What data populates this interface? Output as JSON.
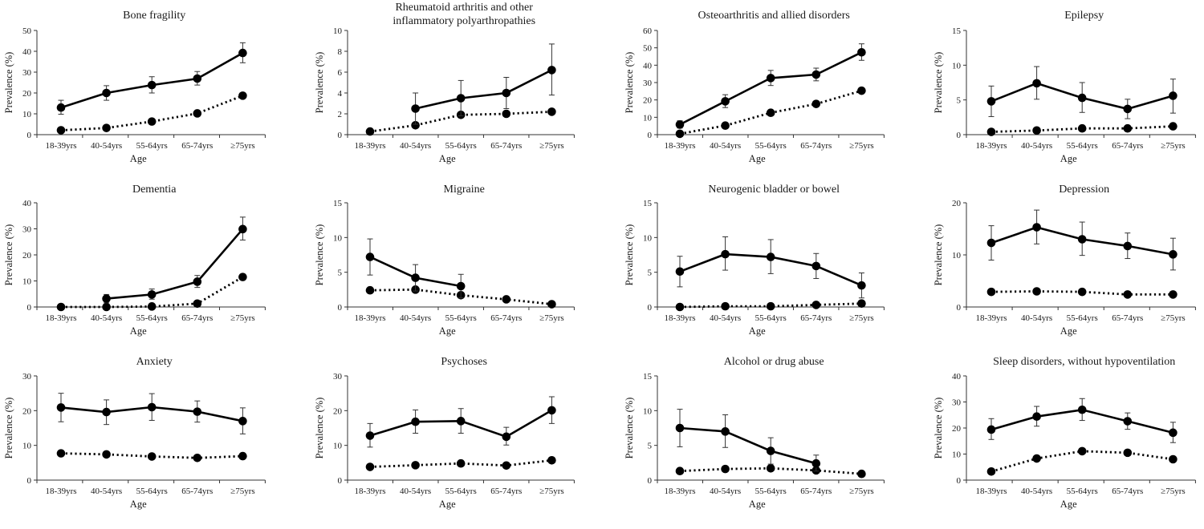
{
  "chart_data": [
    {
      "type": "line",
      "title": "Bone fragility",
      "xlabel": "Age",
      "ylabel": "Prevalence (%)",
      "categories": [
        "18-39yrs",
        "40-54yrs",
        "55-64yrs",
        "65-74yrs",
        "≥75yrs"
      ],
      "yticks": [
        0,
        10,
        20,
        30,
        40,
        50
      ],
      "ylim": [
        0,
        50
      ],
      "series": [
        {
          "name": "solid",
          "style": "solid",
          "values": [
            13.0,
            20.0,
            23.8,
            26.9,
            39.2
          ],
          "err_low": [
            9.8,
            16.5,
            20.0,
            23.8,
            34.5
          ],
          "err_high": [
            16.5,
            23.5,
            27.8,
            30.3,
            44.1
          ]
        },
        {
          "name": "dotted",
          "style": "dotted",
          "values": [
            2.1,
            3.2,
            6.3,
            10.2,
            18.7
          ]
        }
      ]
    },
    {
      "type": "line",
      "title": "Rheumatoid arthritis and other inflammatory polyarthropathies",
      "title_lines": [
        "Rheumatoid arthritis and other",
        "inflammatory polyarthropathies"
      ],
      "xlabel": "Age",
      "ylabel": "Prevalence (%)",
      "categories": [
        "18-39yrs",
        "40-54yrs",
        "55-64yrs",
        "65-74yrs",
        "≥75yrs"
      ],
      "yticks": [
        0,
        2,
        4,
        6,
        8,
        10
      ],
      "ylim": [
        0,
        10
      ],
      "series": [
        {
          "name": "solid",
          "style": "solid",
          "values": [
            null,
            2.5,
            3.5,
            4.0,
            6.2
          ],
          "err_low": [
            null,
            1.0,
            1.8,
            2.5,
            3.8
          ],
          "err_high": [
            null,
            4.0,
            5.2,
            5.5,
            8.7
          ]
        },
        {
          "name": "dotted",
          "style": "dotted",
          "values": [
            0.3,
            0.9,
            1.9,
            2.0,
            2.2
          ]
        }
      ]
    },
    {
      "type": "line",
      "title": "Osteoarthritis and allied disorders",
      "xlabel": "Age",
      "ylabel": "Prevalence (%)",
      "categories": [
        "18-39yrs",
        "40-54yrs",
        "55-64yrs",
        "65-74yrs",
        "≥75yrs"
      ],
      "yticks": [
        0,
        10,
        20,
        30,
        40,
        50,
        60
      ],
      "ylim": [
        0,
        60
      ],
      "series": [
        {
          "name": "solid",
          "style": "solid",
          "values": [
            5.8,
            19.2,
            32.6,
            34.6,
            47.4
          ],
          "err_low": [
            3.8,
            15.6,
            28.3,
            31.0,
            42.8
          ],
          "err_high": [
            8.0,
            23.0,
            37.0,
            38.3,
            52.3
          ]
        },
        {
          "name": "dotted",
          "style": "dotted",
          "values": [
            0.5,
            5.2,
            12.6,
            17.7,
            25.3
          ]
        }
      ]
    },
    {
      "type": "line",
      "title": "Epilepsy",
      "xlabel": "Age",
      "ylabel": "Prevalence (%)",
      "categories": [
        "18-39yrs",
        "40-54yrs",
        "55-64yrs",
        "65-74yrs",
        "≥75yrs"
      ],
      "yticks": [
        0,
        5,
        10,
        15
      ],
      "ylim": [
        0,
        15
      ],
      "series": [
        {
          "name": "solid",
          "style": "solid",
          "values": [
            4.8,
            7.4,
            5.3,
            3.7,
            5.6
          ],
          "err_low": [
            2.6,
            5.1,
            3.2,
            2.3,
            3.1
          ],
          "err_high": [
            7.0,
            9.8,
            7.5,
            5.1,
            8.0
          ]
        },
        {
          "name": "dotted",
          "style": "dotted",
          "values": [
            0.4,
            0.6,
            0.9,
            0.9,
            1.2
          ]
        }
      ]
    },
    {
      "type": "line",
      "title": "Dementia",
      "xlabel": "Age",
      "ylabel": "Prevalence (%)",
      "categories": [
        "18-39yrs",
        "40-54yrs",
        "55-64yrs",
        "65-74yrs",
        "≥75yrs"
      ],
      "yticks": [
        0,
        10,
        20,
        30,
        40
      ],
      "ylim": [
        0,
        40
      ],
      "series": [
        {
          "name": "solid",
          "style": "solid",
          "values": [
            null,
            3.2,
            4.8,
            9.7,
            29.9
          ],
          "err_low": [
            null,
            1.6,
            3.0,
            7.5,
            25.7
          ],
          "err_high": [
            null,
            4.8,
            6.9,
            12.1,
            34.5
          ]
        },
        {
          "name": "dotted",
          "style": "dotted",
          "values": [
            0.0,
            0.0,
            0.2,
            1.3,
            11.5
          ]
        }
      ]
    },
    {
      "type": "line",
      "title": "Migraine",
      "xlabel": "Age",
      "ylabel": "Prevalence (%)",
      "categories": [
        "18-39yrs",
        "40-54yrs",
        "55-64yrs",
        "65-74yrs",
        "≥75yrs"
      ],
      "yticks": [
        0,
        5,
        10,
        15
      ],
      "ylim": [
        0,
        15
      ],
      "series": [
        {
          "name": "solid",
          "style": "solid",
          "values": [
            7.2,
            4.2,
            3.0,
            null,
            null
          ],
          "err_low": [
            4.6,
            2.3,
            1.3,
            null,
            null
          ],
          "err_high": [
            9.8,
            6.1,
            4.7,
            null,
            null
          ]
        },
        {
          "name": "dotted",
          "style": "dotted",
          "values": [
            2.4,
            2.5,
            1.7,
            1.1,
            0.4
          ]
        }
      ]
    },
    {
      "type": "line",
      "title": "Neurogenic bladder or bowel",
      "xlabel": "Age",
      "ylabel": "Prevalence (%)",
      "categories": [
        "18-39yrs",
        "40-54yrs",
        "55-64yrs",
        "65-74yrs",
        "≥75yrs"
      ],
      "yticks": [
        0,
        5,
        10,
        15
      ],
      "ylim": [
        0,
        15
      ],
      "series": [
        {
          "name": "solid",
          "style": "solid",
          "values": [
            5.1,
            7.6,
            7.2,
            5.9,
            3.1
          ],
          "err_low": [
            2.9,
            5.3,
            4.8,
            4.1,
            1.3
          ],
          "err_high": [
            7.3,
            10.1,
            9.7,
            7.7,
            4.9
          ]
        },
        {
          "name": "dotted",
          "style": "dotted",
          "values": [
            0.0,
            0.1,
            0.1,
            0.3,
            0.5
          ]
        }
      ]
    },
    {
      "type": "line",
      "title": "Depression",
      "xlabel": "Age",
      "ylabel": "Prevalence (%)",
      "categories": [
        "18-39yrs",
        "40-54yrs",
        "55-64yrs",
        "65-74yrs",
        "≥75yrs"
      ],
      "yticks": [
        0,
        10,
        20
      ],
      "ylim": [
        0,
        20
      ],
      "series": [
        {
          "name": "solid",
          "style": "solid",
          "values": [
            12.3,
            15.3,
            13.0,
            11.7,
            10.1
          ],
          "err_low": [
            9.0,
            12.1,
            9.9,
            9.3,
            7.1
          ],
          "err_high": [
            15.6,
            18.6,
            16.3,
            14.2,
            13.2
          ]
        },
        {
          "name": "dotted",
          "style": "dotted",
          "values": [
            2.9,
            3.0,
            2.9,
            2.4,
            2.4
          ]
        }
      ]
    },
    {
      "type": "line",
      "title": "Anxiety",
      "xlabel": "Age",
      "ylabel": "Prevalence (%)",
      "categories": [
        "18-39yrs",
        "40-54yrs",
        "55-64yrs",
        "65-74yrs",
        "≥75yrs"
      ],
      "yticks": [
        0,
        10,
        20,
        30
      ],
      "ylim": [
        0,
        30
      ],
      "series": [
        {
          "name": "solid",
          "style": "solid",
          "values": [
            20.9,
            19.6,
            21.0,
            19.7,
            17.0
          ],
          "err_low": [
            16.8,
            16.0,
            17.2,
            16.7,
            13.3
          ],
          "err_high": [
            25.0,
            23.1,
            24.9,
            22.8,
            20.8
          ]
        },
        {
          "name": "dotted",
          "style": "dotted",
          "values": [
            7.7,
            7.4,
            6.8,
            6.4,
            6.9
          ]
        }
      ]
    },
    {
      "type": "line",
      "title": "Psychoses",
      "xlabel": "Age",
      "ylabel": "Prevalence (%)",
      "categories": [
        "18-39yrs",
        "40-54yrs",
        "55-64yrs",
        "65-74yrs",
        "≥75yrs"
      ],
      "yticks": [
        0,
        10,
        20,
        30
      ],
      "ylim": [
        0,
        30
      ],
      "series": [
        {
          "name": "solid",
          "style": "solid",
          "values": [
            12.8,
            16.8,
            17.0,
            12.5,
            20.1
          ],
          "err_low": [
            9.5,
            13.5,
            13.5,
            10.1,
            16.3
          ],
          "err_high": [
            16.3,
            20.2,
            20.6,
            15.2,
            24.0
          ]
        },
        {
          "name": "dotted",
          "style": "dotted",
          "values": [
            3.8,
            4.3,
            4.8,
            4.2,
            5.7
          ]
        }
      ]
    },
    {
      "type": "line",
      "title": "Alcohol or drug abuse",
      "xlabel": "Age",
      "ylabel": "Prevalence (%)",
      "categories": [
        "18-39yrs",
        "40-54yrs",
        "55-64yrs",
        "65-74yrs",
        "≥75yrs"
      ],
      "yticks": [
        0,
        5,
        10,
        15
      ],
      "ylim": [
        0,
        15
      ],
      "series": [
        {
          "name": "solid",
          "style": "solid",
          "values": [
            7.5,
            7.0,
            4.2,
            2.4,
            null
          ],
          "err_low": [
            4.8,
            4.7,
            2.3,
            1.3,
            null
          ],
          "err_high": [
            10.2,
            9.4,
            6.1,
            3.6,
            null
          ]
        },
        {
          "name": "dotted",
          "style": "dotted",
          "values": [
            1.3,
            1.6,
            1.7,
            1.4,
            0.9
          ]
        }
      ]
    },
    {
      "type": "line",
      "title": "Sleep disorders, without hypoventilation",
      "xlabel": "Age",
      "ylabel": "Prevalence (%)",
      "categories": [
        "18-39yrs",
        "40-54yrs",
        "55-64yrs",
        "65-74yrs",
        "≥75yrs"
      ],
      "yticks": [
        0,
        10,
        20,
        30,
        40
      ],
      "ylim": [
        0,
        40
      ],
      "series": [
        {
          "name": "solid",
          "style": "solid",
          "values": [
            19.4,
            24.4,
            27.0,
            22.6,
            18.2
          ],
          "err_low": [
            15.6,
            20.7,
            22.9,
            19.5,
            14.4
          ],
          "err_high": [
            23.6,
            28.3,
            31.3,
            25.8,
            22.2
          ]
        },
        {
          "name": "dotted",
          "style": "dotted",
          "values": [
            3.3,
            8.3,
            11.1,
            10.5,
            8.0
          ]
        }
      ]
    }
  ]
}
